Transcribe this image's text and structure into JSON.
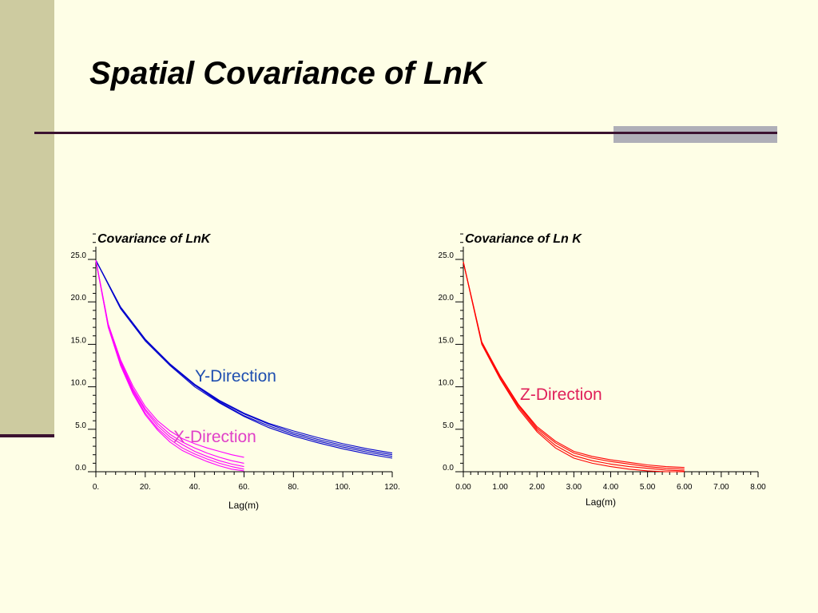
{
  "slide": {
    "title": "Spatial Covariance of LnK",
    "colors": {
      "background": "#FEFEE6",
      "sidebar": "#CDCBA0",
      "rule": "#3B1230",
      "accent": "#AFAFB8"
    }
  },
  "chart_data": [
    {
      "type": "line",
      "title": "Covariance of LnK",
      "xlabel": "Lag(m)",
      "ylabel": "",
      "xlim": [
        0,
        120
      ],
      "ylim": [
        0,
        25
      ],
      "x_ticks": [
        "0.",
        "20.",
        "40.",
        "60.",
        "80.",
        "100.",
        "120."
      ],
      "y_ticks": [
        "0.0",
        "5.0",
        "10.0",
        "15.0",
        "20.0",
        "25.0"
      ],
      "annotations": [
        {
          "text": "Y-Direction",
          "color": "#1F4FB0",
          "x": 40.5,
          "y": 10.4
        },
        {
          "text": "X-Direction",
          "color": "#E040C8",
          "x": 31.5,
          "y": 3.3
        }
      ],
      "series": [
        {
          "color": "#0000CC",
          "x": [
            0,
            10,
            20,
            30,
            40,
            50,
            60,
            70,
            80,
            90,
            100,
            110,
            120
          ],
          "y": [
            24.9,
            19.4,
            15.6,
            12.7,
            10.3,
            8.4,
            6.9,
            5.7,
            4.8,
            4.0,
            3.3,
            2.7,
            2.2
          ]
        },
        {
          "color": "#0000CC",
          "x": [
            0,
            10,
            20,
            30,
            40,
            50,
            60,
            70,
            80,
            90,
            100,
            110,
            120
          ],
          "y": [
            24.9,
            19.3,
            15.5,
            12.6,
            10.2,
            8.3,
            6.8,
            5.6,
            4.6,
            3.8,
            3.1,
            2.5,
            2.0
          ]
        },
        {
          "color": "#0000CC",
          "x": [
            0,
            10,
            20,
            30,
            40,
            50,
            60,
            70,
            80,
            90,
            100,
            110,
            120
          ],
          "y": [
            24.9,
            19.4,
            15.6,
            12.6,
            10.2,
            8.2,
            6.6,
            5.4,
            4.4,
            3.6,
            2.9,
            2.3,
            1.8
          ]
        },
        {
          "color": "#0000CC",
          "x": [
            0,
            10,
            20,
            30,
            40,
            50,
            60,
            70,
            80,
            90,
            100,
            110,
            120
          ],
          "y": [
            24.9,
            19.2,
            15.4,
            12.5,
            10.0,
            8.1,
            6.5,
            5.2,
            4.2,
            3.4,
            2.7,
            2.1,
            1.6
          ]
        },
        {
          "color": "#FF00FF",
          "x": [
            0,
            5,
            10,
            15,
            20,
            25,
            30,
            35,
            40,
            45,
            50,
            55,
            60
          ],
          "y": [
            24.9,
            17.4,
            13.2,
            10.1,
            7.7,
            6.0,
            4.8,
            3.9,
            3.3,
            2.8,
            2.4,
            2.0,
            1.7
          ]
        },
        {
          "color": "#FF00FF",
          "x": [
            0,
            5,
            10,
            15,
            20,
            25,
            30,
            35,
            40,
            45,
            50,
            55,
            60
          ],
          "y": [
            24.9,
            17.3,
            13.0,
            9.8,
            7.4,
            5.7,
            4.4,
            3.5,
            2.8,
            2.2,
            1.7,
            1.3,
            1.0
          ]
        },
        {
          "color": "#FF00FF",
          "x": [
            0,
            5,
            10,
            15,
            20,
            25,
            30,
            35,
            40,
            45,
            50,
            55,
            60
          ],
          "y": [
            24.9,
            17.2,
            12.8,
            9.6,
            7.2,
            5.4,
            4.1,
            3.2,
            2.4,
            1.8,
            1.3,
            0.9,
            0.6
          ]
        },
        {
          "color": "#FF00FF",
          "x": [
            0,
            5,
            10,
            15,
            20,
            25,
            30,
            35,
            40,
            45,
            50,
            55,
            60
          ],
          "y": [
            24.9,
            17.1,
            12.7,
            9.4,
            6.9,
            5.1,
            3.8,
            2.8,
            2.1,
            1.5,
            1.0,
            0.6,
            0.3
          ]
        },
        {
          "color": "#FF00FF",
          "x": [
            0,
            5,
            10,
            15,
            20,
            25,
            30,
            35,
            40,
            45,
            50,
            55,
            60
          ],
          "y": [
            24.9,
            17.0,
            12.5,
            9.2,
            6.7,
            4.9,
            3.5,
            2.5,
            1.8,
            1.2,
            0.7,
            0.3,
            0.1
          ]
        }
      ]
    },
    {
      "type": "line",
      "title": "Covariance of Ln K",
      "xlabel": "Lag(m)",
      "ylabel": "",
      "xlim": [
        0,
        8
      ],
      "ylim": [
        0,
        25
      ],
      "x_ticks": [
        "0.00",
        "1.00",
        "2.00",
        "3.00",
        "4.00",
        "5.00",
        "6.00",
        "7.00",
        "8.00"
      ],
      "y_ticks": [
        "0.0",
        "5.0",
        "10.0",
        "15.0",
        "20.0",
        "25.0"
      ],
      "annotations": [
        {
          "text": "Z-Direction",
          "color": "#E0205A",
          "x": 1.5,
          "y": 8.2
        }
      ],
      "series": [
        {
          "color": "#FF0000",
          "x": [
            0,
            0.5,
            1.0,
            1.5,
            2.0,
            2.5,
            3.0,
            3.5,
            4.0,
            4.5,
            5.0,
            5.5,
            6.0
          ],
          "y": [
            24.7,
            15.3,
            11.3,
            7.9,
            5.3,
            3.6,
            2.4,
            1.8,
            1.4,
            1.1,
            0.8,
            0.6,
            0.5
          ]
        },
        {
          "color": "#FF0000",
          "x": [
            0,
            0.5,
            1.0,
            1.5,
            2.0,
            2.5,
            3.0,
            3.5,
            4.0,
            4.5,
            5.0,
            5.5,
            6.0
          ],
          "y": [
            24.7,
            15.2,
            11.2,
            7.8,
            5.1,
            3.4,
            2.2,
            1.6,
            1.2,
            0.9,
            0.6,
            0.4,
            0.3
          ]
        },
        {
          "color": "#FF0000",
          "x": [
            0,
            0.5,
            1.0,
            1.5,
            2.0,
            2.5,
            3.0,
            3.5,
            4.0,
            4.5,
            5.0,
            5.5,
            6.0
          ],
          "y": [
            24.7,
            15.1,
            11.0,
            7.6,
            4.9,
            3.1,
            1.9,
            1.3,
            0.9,
            0.6,
            0.4,
            0.2,
            0.1
          ]
        },
        {
          "color": "#FF0000",
          "x": [
            0,
            0.5,
            1.0,
            1.5,
            2.0,
            2.5,
            3.0,
            3.5,
            4.0,
            4.5,
            5.0,
            5.5,
            6.0
          ],
          "y": [
            24.7,
            15.0,
            10.9,
            7.4,
            4.7,
            2.8,
            1.6,
            1.0,
            0.6,
            0.3,
            0.1,
            0.0,
            0.0
          ]
        }
      ]
    }
  ]
}
